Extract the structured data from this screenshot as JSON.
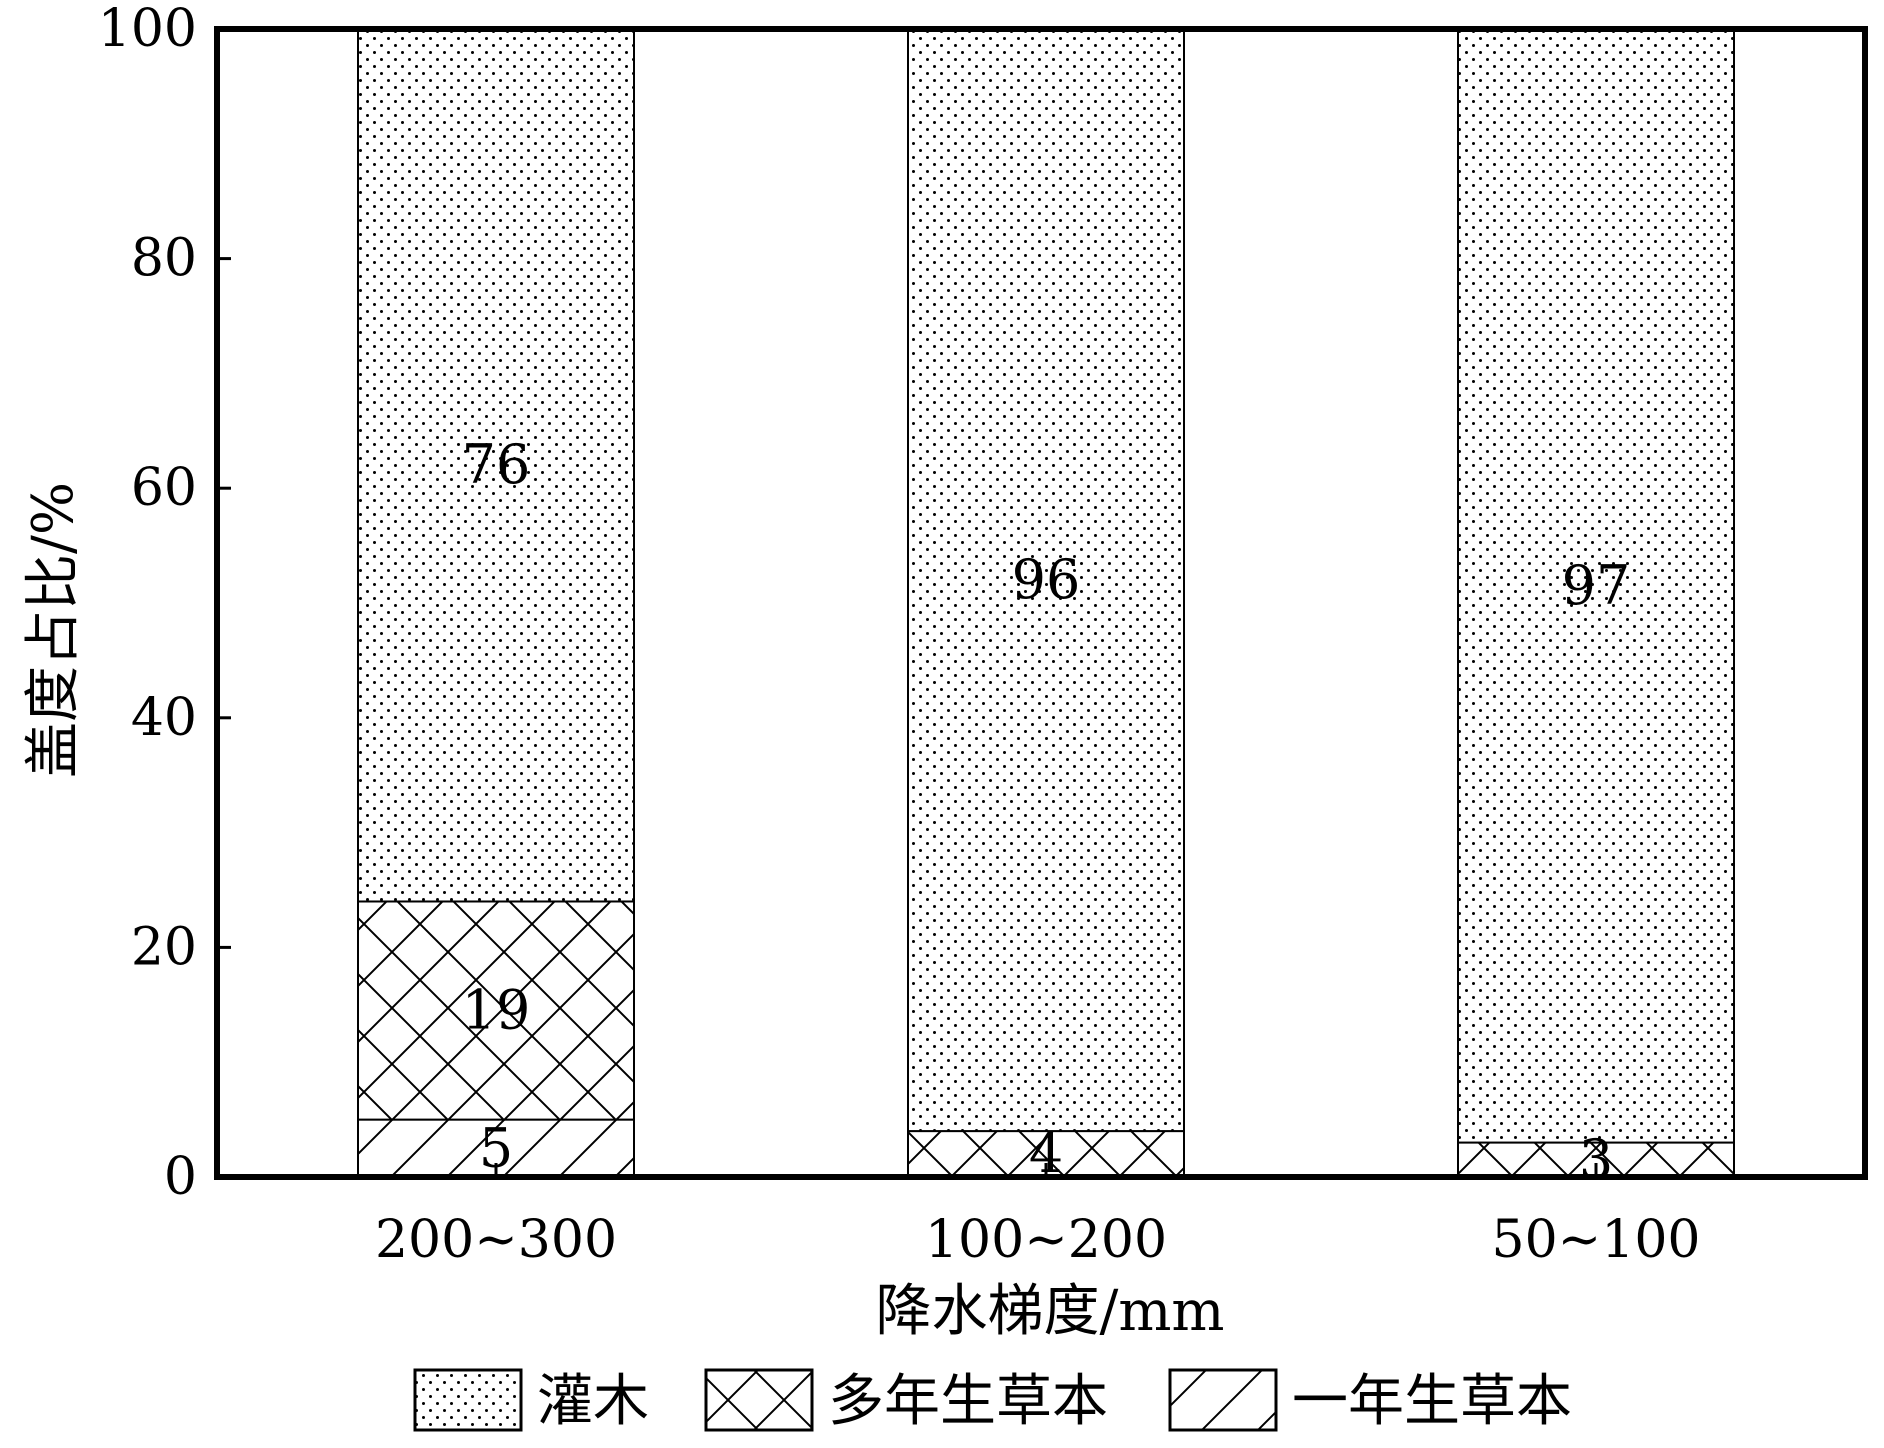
{
  "chart_data": {
    "type": "bar",
    "stacked": true,
    "categories": [
      "200~300",
      "100~200",
      "50~100"
    ],
    "series": [
      {
        "name": "一年生草本",
        "values": [
          5,
          0,
          0
        ],
        "pattern": "diagonal-hatch"
      },
      {
        "name": "多年生草本",
        "values": [
          19,
          4,
          3
        ],
        "pattern": "cross-hatch"
      },
      {
        "name": "灌木",
        "values": [
          76,
          96,
          97
        ],
        "pattern": "dots"
      }
    ],
    "segment_labels": [
      [
        "5",
        "19",
        "76"
      ],
      [
        "",
        "4",
        "96"
      ],
      [
        "",
        "3",
        "97"
      ]
    ],
    "xlabel": "降水梯度/mm",
    "ylabel": "盖度占比/%",
    "ylim": [
      0,
      100
    ],
    "yticks": [
      "0",
      "20",
      "40",
      "60",
      "80",
      "100"
    ],
    "legend": {
      "placement": "bottom",
      "entries": [
        "灌木",
        "多年生草本",
        "一年生草本"
      ]
    },
    "grid": false
  }
}
